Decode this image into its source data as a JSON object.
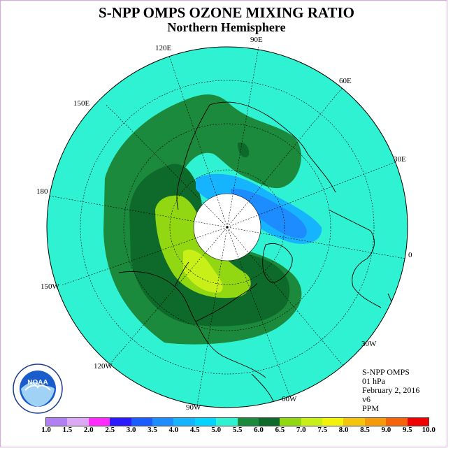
{
  "title": "S-NPP OMPS OZONE MIXING RATIO",
  "subtitle": "Northern Hemisphere",
  "longitude_labels": [
    "90E",
    "60E",
    "30E",
    "0",
    "30W",
    "60W",
    "90W",
    "120W",
    "150W",
    "180",
    "150E",
    "120E"
  ],
  "info": {
    "instrument": "S-NPP OMPS",
    "level": "01 hPa",
    "date": "February 2, 2016",
    "version": "v6",
    "units": "PPM"
  },
  "logo": {
    "text": "NOAA"
  },
  "colorbar": {
    "ticks": [
      "1.0",
      "1.5",
      "2.0",
      "2.5",
      "3.0",
      "3.5",
      "4.0",
      "4.5",
      "5.0",
      "5.5",
      "6.0",
      "6.5",
      "7.0",
      "7.5",
      "8.0",
      "8.5",
      "9.0",
      "9.5",
      "10.0"
    ],
    "colors": [
      "#b27ff2",
      "#dcaaf5",
      "#ff2bff",
      "#2a1aff",
      "#1a5cff",
      "#1c8cff",
      "#16b4ff",
      "#00d4ff",
      "#2ff2d2",
      "#1c8a3c",
      "#0d6a2a",
      "#91d712",
      "#c8f018",
      "#f2f20a",
      "#f5c40c",
      "#f59a0a",
      "#f5640a",
      "#f00000",
      "#8a5a3a"
    ]
  },
  "colors": {
    "background_ozone": "#2ff2d2",
    "mid_green": "#1c8a3c",
    "dark_green": "#0d6a2a",
    "lime": "#91d712",
    "yellow_green": "#c8f018",
    "blue": "#1c8cff",
    "light_blue": "#16b4ff",
    "polar_gap": "#ffffff"
  }
}
